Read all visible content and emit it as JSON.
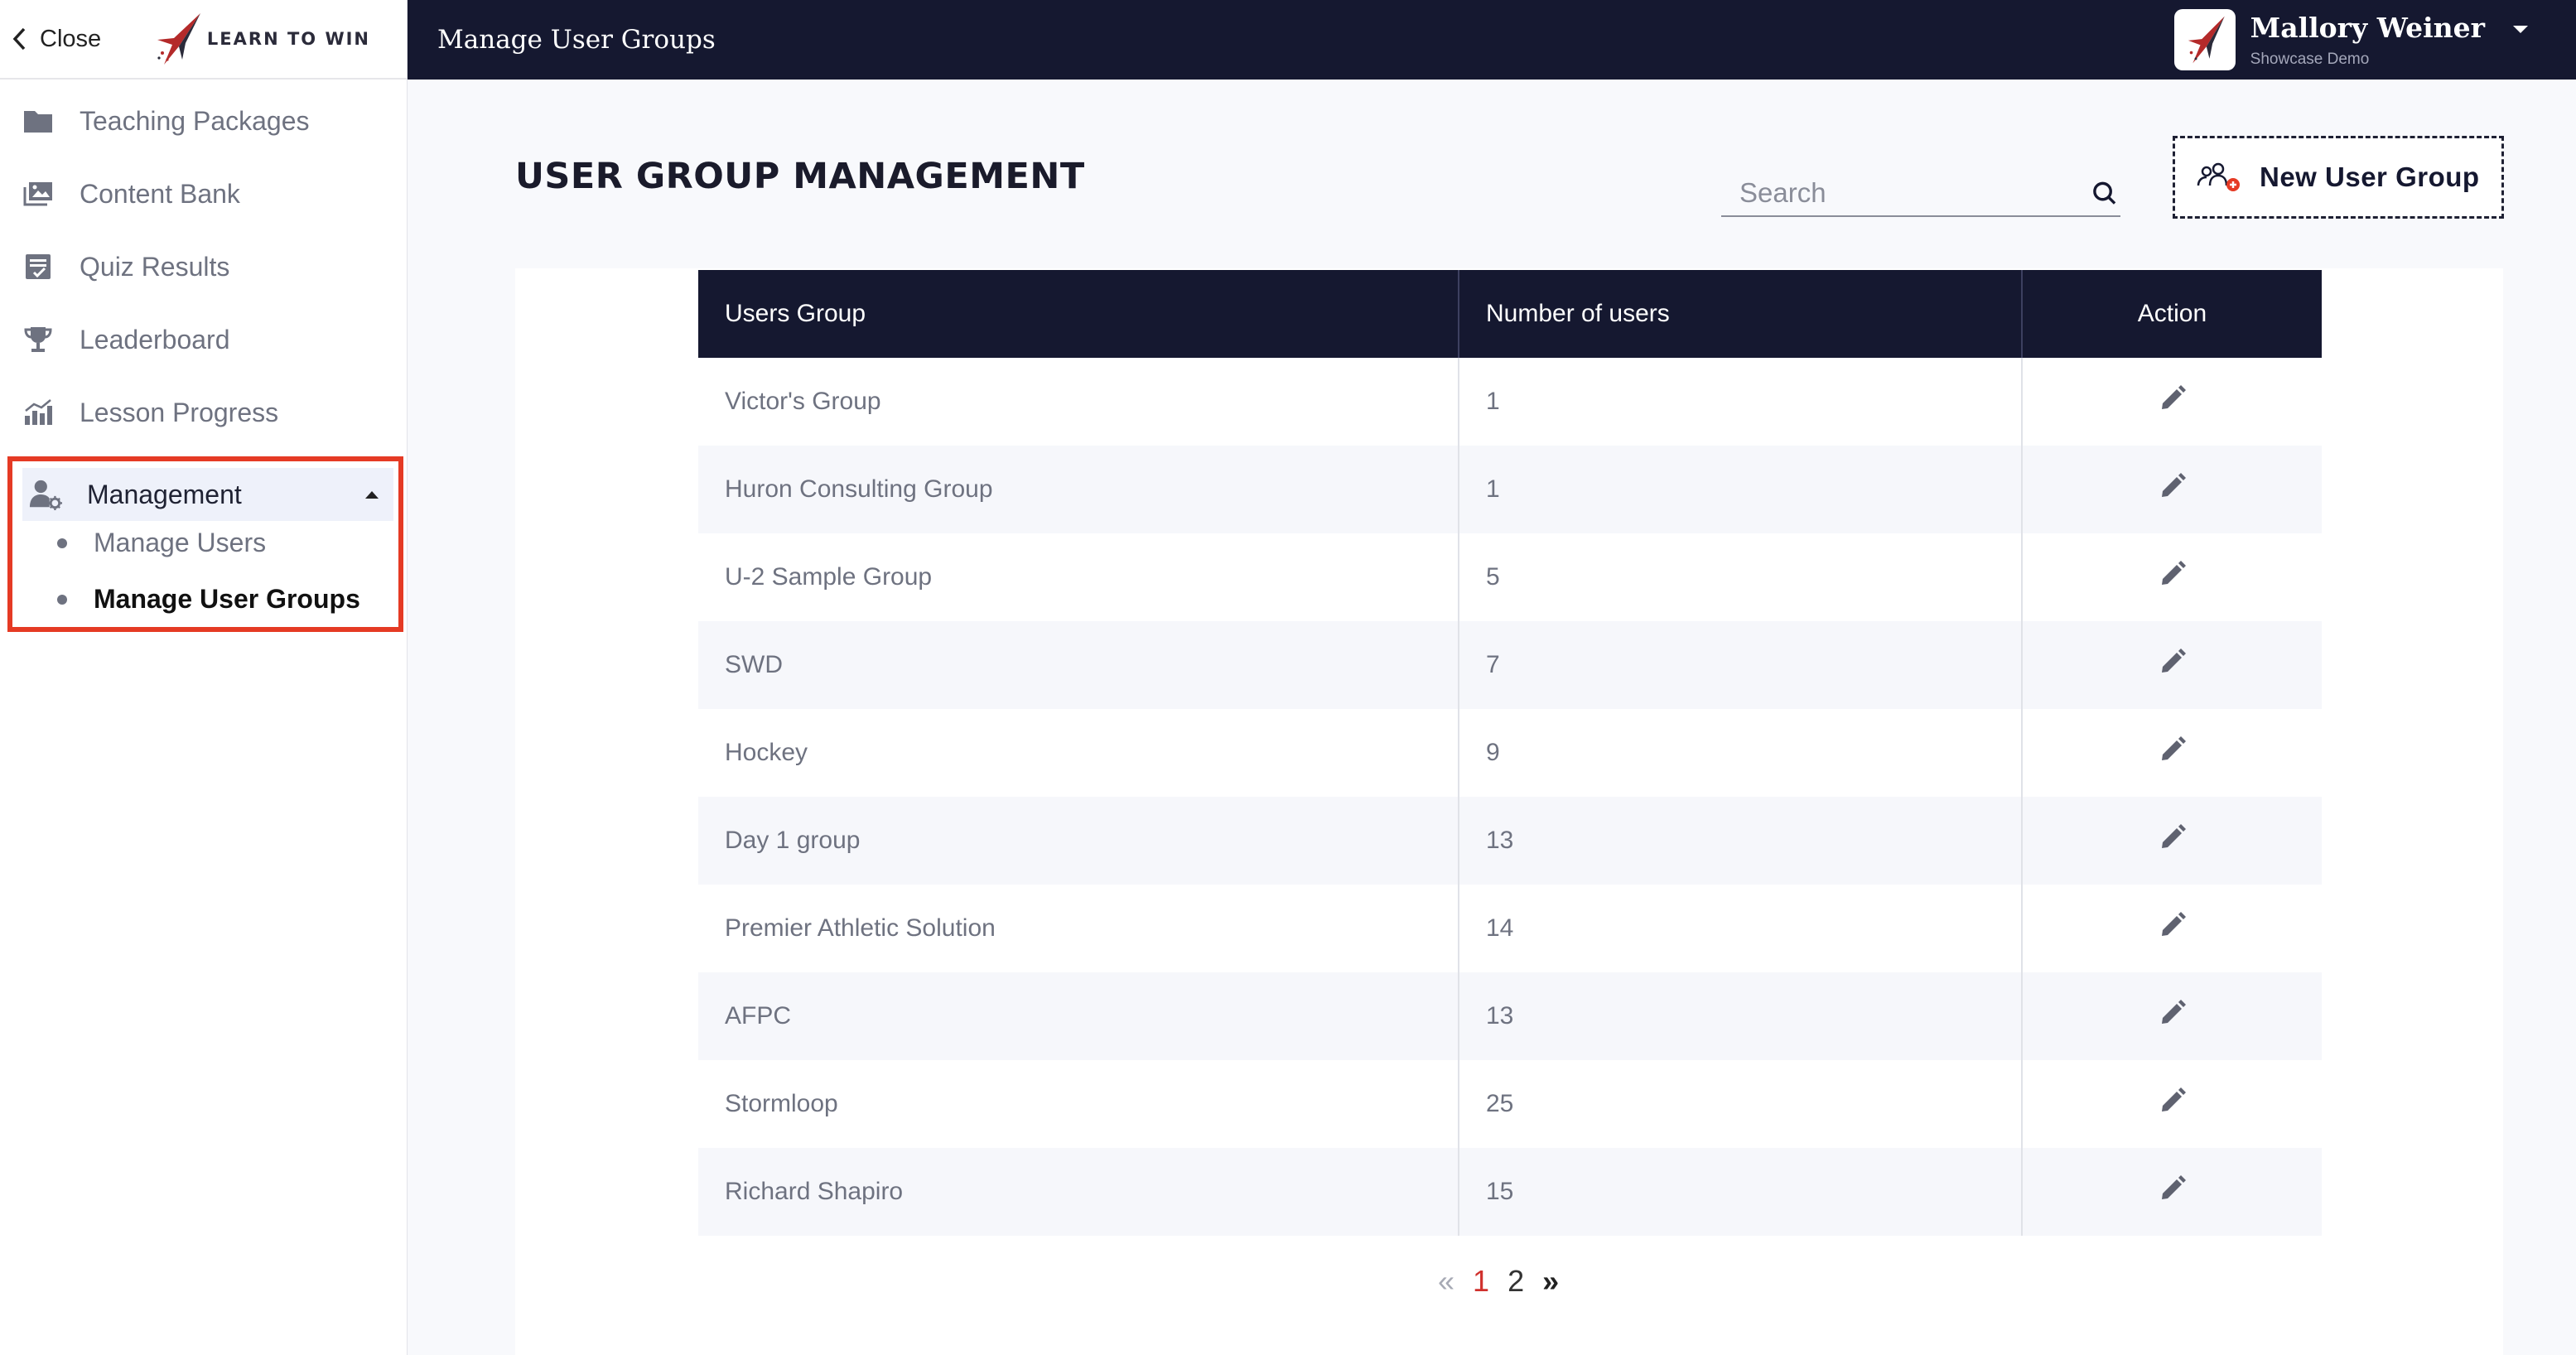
{
  "sidebar": {
    "close_label": "Close",
    "logo_text": "LEARN TO WIN",
    "items": [
      {
        "label": "Teaching Packages",
        "icon": "folder-icon"
      },
      {
        "label": "Content Bank",
        "icon": "images-icon"
      },
      {
        "label": "Quiz Results",
        "icon": "quiz-icon"
      },
      {
        "label": "Leaderboard",
        "icon": "trophy-icon"
      },
      {
        "label": "Lesson Progress",
        "icon": "chart-icon"
      }
    ],
    "management": {
      "label": "Management",
      "icon": "user-gear-icon",
      "expanded": true,
      "children": [
        {
          "label": "Manage Users",
          "active": false
        },
        {
          "label": "Manage User Groups",
          "active": true
        }
      ]
    },
    "highlight_color": "#e53a24"
  },
  "header": {
    "title": "Manage User Groups",
    "user_name": "Mallory Weiner",
    "user_org": "Showcase Demo",
    "background": "#151830"
  },
  "main": {
    "page_title": "USER GROUP MANAGEMENT",
    "search": {
      "placeholder": "Search",
      "value": ""
    },
    "new_group_label": "New User Group",
    "table": {
      "columns": [
        "Users Group",
        "Number of users",
        "Action"
      ],
      "rows": [
        {
          "group": "Victor's Group",
          "count": "1"
        },
        {
          "group": "Huron Consulting Group",
          "count": "1"
        },
        {
          "group": "U-2 Sample Group",
          "count": "5"
        },
        {
          "group": "SWD",
          "count": "7"
        },
        {
          "group": "Hockey",
          "count": "9"
        },
        {
          "group": "Day 1 group",
          "count": "13"
        },
        {
          "group": "Premier Athletic Solution",
          "count": "14"
        },
        {
          "group": "AFPC",
          "count": "13"
        },
        {
          "group": "Stormloop",
          "count": "25"
        },
        {
          "group": "Richard Shapiro",
          "count": "15"
        }
      ]
    },
    "pagination": {
      "prev": "«",
      "pages": [
        "1",
        "2"
      ],
      "current": "1",
      "next": "»"
    }
  }
}
